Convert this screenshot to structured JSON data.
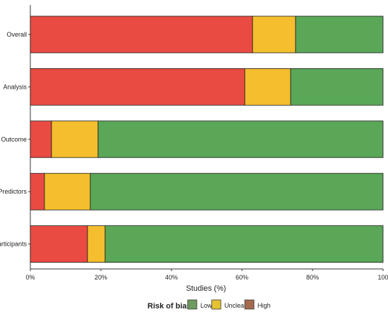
{
  "chart_data": {
    "type": "bar",
    "orientation": "horizontal",
    "stacked": true,
    "xlabel": "Studies (%)",
    "xlim": [
      0,
      100
    ],
    "x_ticks": [
      "0%",
      "20%",
      "40%",
      "60%",
      "80%",
      "100"
    ],
    "categories": [
      "Overall",
      "Analysis",
      "Outcome",
      "Predictors",
      "Participants"
    ],
    "series": [
      {
        "name": "High",
        "color": "#E94B43",
        "values": [
          63,
          60.8,
          6,
          4,
          16.2
        ]
      },
      {
        "name": "Unclear",
        "color": "#F4BE2E",
        "values": [
          12.2,
          13,
          13.2,
          13,
          5
        ]
      },
      {
        "name": "Low",
        "color": "#5AA758",
        "values": [
          24.8,
          26.2,
          80.8,
          83,
          78.8
        ]
      }
    ],
    "legend": {
      "title": "Risk of bias",
      "position": "bottom",
      "items": [
        {
          "name": "Low",
          "color": "#6E9B5E"
        },
        {
          "name": "Unclear",
          "color": "#E6C232"
        },
        {
          "name": "High",
          "color": "#A5694E"
        }
      ]
    }
  }
}
